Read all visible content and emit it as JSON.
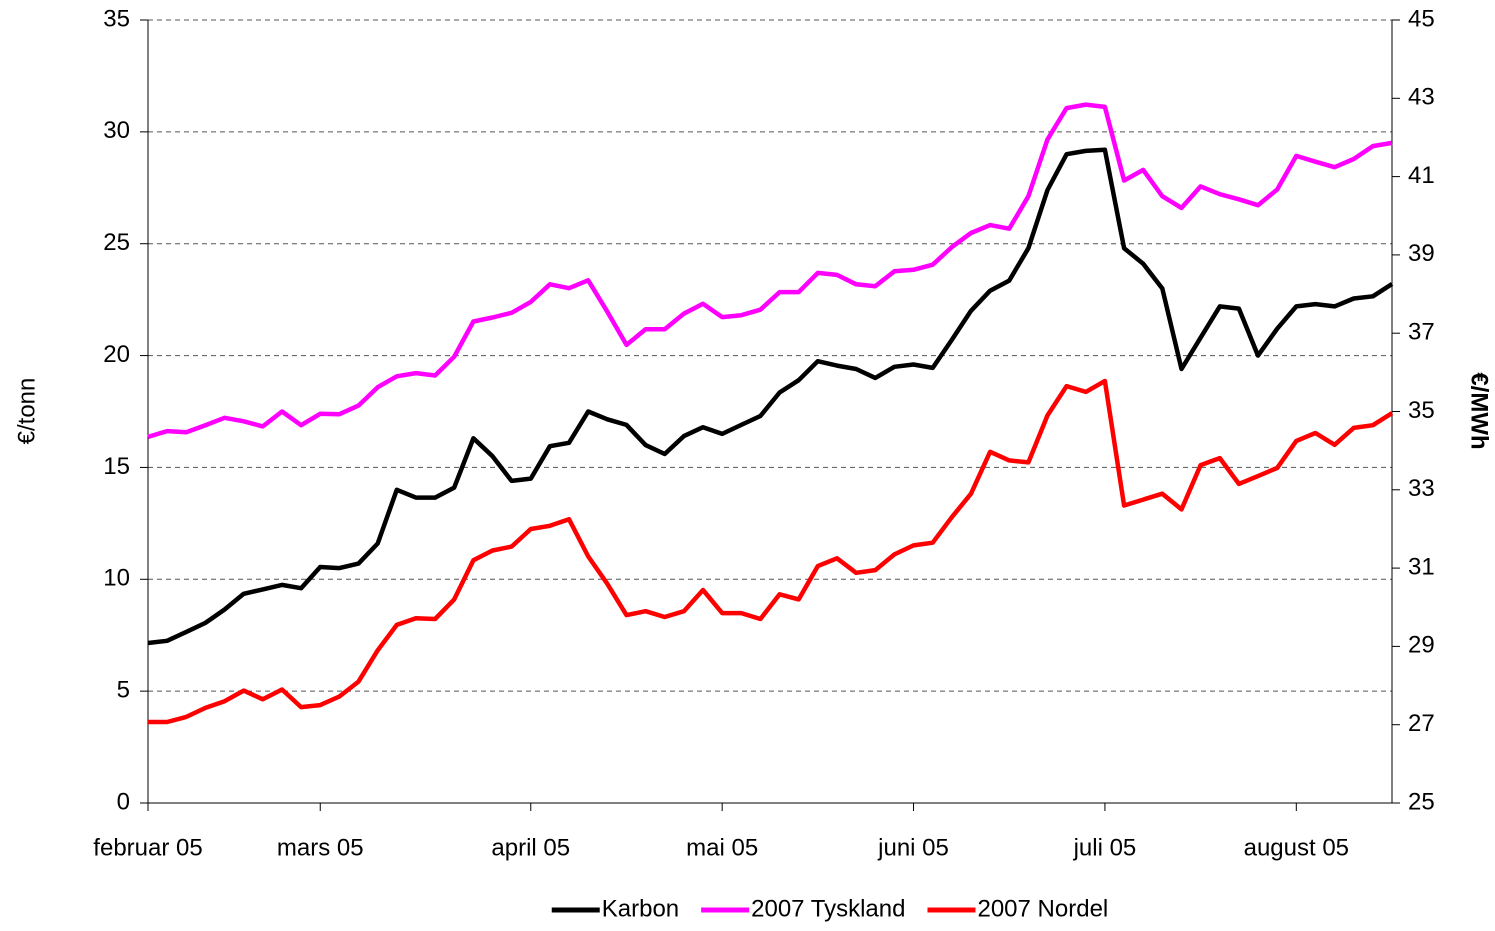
{
  "chart_data": {
    "type": "line",
    "y_label": "€/tonn",
    "y2_label": "€/MWh",
    "categories": [
      "februar 05",
      null,
      null,
      null,
      null,
      null,
      null,
      null,
      null,
      "mars 05",
      null,
      null,
      null,
      null,
      null,
      null,
      null,
      null,
      null,
      null,
      "april 05",
      null,
      null,
      null,
      null,
      null,
      null,
      null,
      null,
      null,
      "mai 05",
      null,
      null,
      null,
      null,
      null,
      null,
      null,
      null,
      null,
      "juni 05",
      null,
      null,
      null,
      null,
      null,
      null,
      null,
      null,
      null,
      "juli 05",
      null,
      null,
      null,
      null,
      null,
      null,
      null,
      null,
      null,
      "august 05",
      null,
      null,
      null,
      null,
      null
    ],
    "series": [
      {
        "name": "Karbon",
        "color": "#000000",
        "axis": "y",
        "values": [
          7.15,
          7.25,
          7.65,
          8.05,
          8.65,
          9.35,
          9.55,
          9.75,
          9.6,
          10.55,
          10.5,
          10.7,
          11.6,
          14.0,
          13.65,
          13.65,
          14.1,
          16.3,
          15.5,
          14.4,
          14.5,
          15.95,
          16.1,
          17.5,
          17.15,
          16.9,
          16.0,
          15.6,
          16.4,
          16.8,
          16.5,
          16.9,
          17.3,
          18.35,
          18.9,
          19.75,
          19.55,
          19.4,
          19.0,
          19.5,
          19.6,
          19.45,
          20.7,
          22.0,
          22.9,
          23.35,
          24.8,
          27.4,
          29.0,
          29.15,
          29.2,
          24.8,
          24.1,
          23.0,
          19.4,
          20.8,
          22.2,
          22.1,
          20.0,
          21.2,
          22.2,
          22.3,
          22.2,
          22.55,
          22.65,
          23.2
        ]
      },
      {
        "name": "2007 Tyskland",
        "color": "#ff00ff",
        "axis": "y2",
        "values": [
          34.35,
          34.5,
          34.47,
          34.65,
          34.84,
          34.75,
          34.62,
          35.0,
          34.65,
          34.94,
          34.93,
          35.15,
          35.62,
          35.9,
          35.98,
          35.92,
          36.4,
          37.3,
          37.4,
          37.52,
          37.8,
          38.25,
          38.15,
          38.35,
          37.55,
          36.7,
          37.1,
          37.1,
          37.5,
          37.75,
          37.41,
          37.46,
          37.6,
          38.05,
          38.05,
          38.54,
          38.49,
          38.25,
          38.2,
          38.58,
          38.62,
          38.75,
          39.2,
          39.56,
          39.76,
          39.67,
          40.5,
          41.95,
          42.75,
          42.84,
          42.78,
          40.9,
          41.17,
          40.5,
          40.2,
          40.75,
          40.55,
          40.42,
          40.27,
          40.67,
          41.53,
          41.38,
          41.24,
          41.45,
          41.78,
          41.86
        ]
      },
      {
        "name": "2007 Nordel",
        "color": "#ff0000",
        "axis": "y2",
        "values": [
          27.07,
          27.07,
          27.2,
          27.43,
          27.6,
          27.87,
          27.65,
          27.9,
          27.45,
          27.5,
          27.72,
          28.1,
          28.9,
          29.55,
          29.72,
          29.7,
          30.2,
          31.2,
          31.45,
          31.55,
          32.0,
          32.08,
          32.25,
          31.3,
          30.6,
          29.8,
          29.9,
          29.75,
          29.9,
          30.44,
          29.85,
          29.85,
          29.7,
          30.33,
          30.2,
          31.05,
          31.25,
          30.88,
          30.95,
          31.35,
          31.58,
          31.65,
          32.3,
          32.9,
          33.97,
          33.75,
          33.7,
          34.9,
          35.65,
          35.5,
          35.78,
          32.6,
          32.75,
          32.9,
          32.5,
          33.63,
          33.81,
          33.15,
          33.35,
          33.56,
          34.25,
          34.45,
          34.15,
          34.58,
          34.65,
          34.96
        ]
      }
    ],
    "ylim": [
      0,
      35
    ],
    "yticks": [
      0,
      5,
      10,
      15,
      20,
      25,
      30,
      35
    ],
    "y2lim": [
      25,
      45
    ],
    "y2ticks": [
      25,
      27,
      29,
      31,
      33,
      35,
      37,
      39,
      41,
      43,
      45
    ],
    "grid": true,
    "legend": "bottom"
  }
}
